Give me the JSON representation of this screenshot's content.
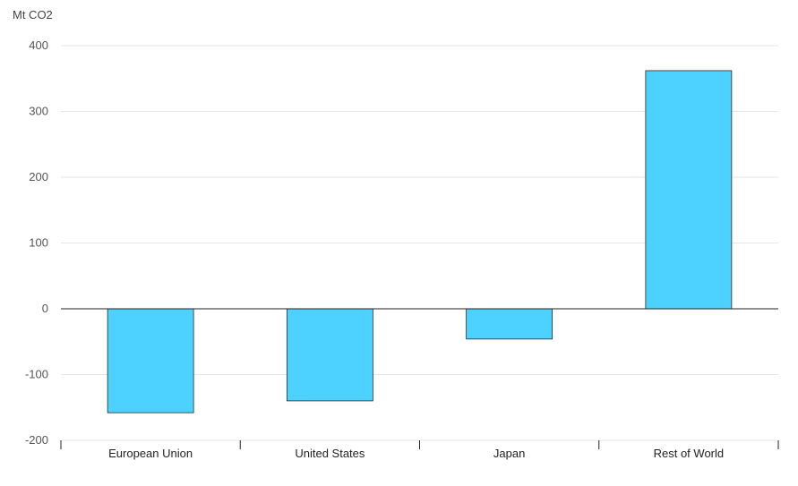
{
  "chart_data": {
    "type": "bar",
    "ylabel": "Mt CO2",
    "categories": [
      "European Union",
      "United States",
      "Japan",
      "Rest of World"
    ],
    "values": [
      -158,
      -140,
      -46,
      362
    ],
    "ylim": [
      -200,
      400
    ],
    "yticks": [
      "400",
      "300",
      "200",
      "100",
      "0",
      "-100",
      "-200"
    ],
    "ytick_values": [
      400,
      300,
      200,
      100,
      0,
      -100,
      -200
    ],
    "grid": true,
    "legend": "none",
    "colors": {
      "bar_fill": "#4dd2ff",
      "bar_stroke": "#2a2a2a",
      "grid": "#e6e6e6",
      "zero_line": "#222222"
    }
  }
}
